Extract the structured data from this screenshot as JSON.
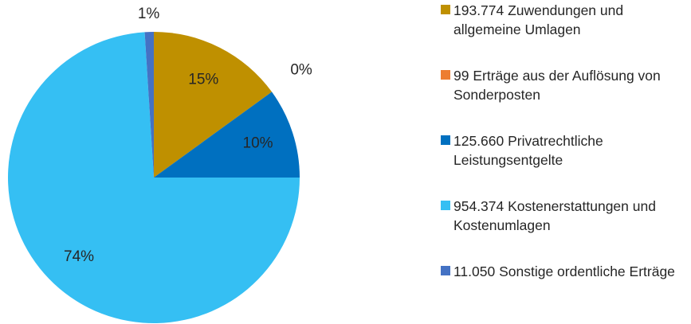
{
  "chart_data": {
    "type": "pie",
    "categories": [
      "193.774 Zuwendungen und allgemeine Umlagen",
      "99 Erträge aus der Auflösung von Sonderposten",
      "125.660 Privatrechtliche Leistungsentgelte",
      "954.374 Kostenerstattungen und Kostenumlagen",
      "11.050 Sonstige ordentliche Erträge"
    ],
    "values": [
      15,
      0,
      10,
      74,
      1
    ],
    "value_labels": [
      "15%",
      "0%",
      "10%",
      "74%",
      "1%"
    ],
    "colors": [
      "#bf9000",
      "#ed7d31",
      "#0070c0",
      "#35bff3",
      "#4472c4"
    ],
    "legend": "right"
  }
}
